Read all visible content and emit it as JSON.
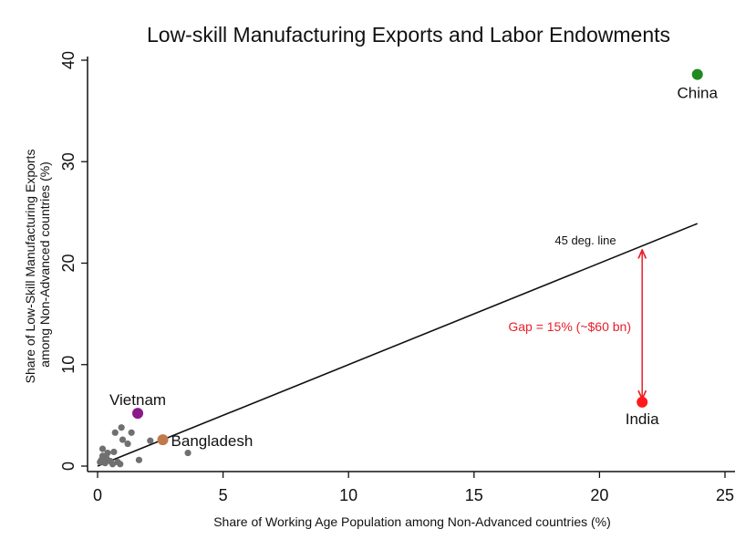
{
  "chart_data": {
    "type": "scatter",
    "title": "Low-skill Manufacturing Exports and Labor Endowments",
    "xlabel": "Share of Working Age Population among Non-Advanced countries (%)",
    "ylabel_lines": [
      "Share of Low-Skill Manufacturing Exports",
      "among Non-Advanced countries (%)"
    ],
    "xlim": [
      0,
      25
    ],
    "ylim": [
      0,
      40
    ],
    "xticks": [
      0,
      5,
      10,
      15,
      20,
      25
    ],
    "yticks": [
      0,
      10,
      20,
      30,
      40
    ],
    "grid": false,
    "background_points": [
      {
        "x": 0.1,
        "y": 0.4
      },
      {
        "x": 0.15,
        "y": 0.6
      },
      {
        "x": 0.2,
        "y": 1.0
      },
      {
        "x": 0.2,
        "y": 1.7
      },
      {
        "x": 0.3,
        "y": 0.3
      },
      {
        "x": 0.35,
        "y": 0.8
      },
      {
        "x": 0.4,
        "y": 1.3
      },
      {
        "x": 0.5,
        "y": 0.5
      },
      {
        "x": 0.6,
        "y": 0.2
      },
      {
        "x": 0.65,
        "y": 1.4
      },
      {
        "x": 0.7,
        "y": 3.3
      },
      {
        "x": 0.8,
        "y": 0.4
      },
      {
        "x": 0.9,
        "y": 0.2
      },
      {
        "x": 0.95,
        "y": 3.8
      },
      {
        "x": 1.0,
        "y": 2.6
      },
      {
        "x": 1.2,
        "y": 2.2
      },
      {
        "x": 1.35,
        "y": 3.3
      },
      {
        "x": 1.65,
        "y": 0.6
      },
      {
        "x": 2.1,
        "y": 2.5
      },
      {
        "x": 3.6,
        "y": 1.3
      }
    ],
    "highlighted_points": [
      {
        "label": "China",
        "x": 23.9,
        "y": 38.6,
        "color": "#1f8a1f"
      },
      {
        "label": "India",
        "x": 21.7,
        "y": 6.3,
        "color": "#ff1a1a"
      },
      {
        "label": "Vietnam",
        "x": 1.6,
        "y": 5.2,
        "color": "#8b1a8b"
      },
      {
        "label": "Bangladesh",
        "x": 2.6,
        "y": 2.6,
        "color": "#c07a4a"
      }
    ],
    "point_color": "#707070",
    "reference_line": {
      "label": "45 deg. line",
      "x_start": 0,
      "y_start": 0,
      "x_end": 23.9,
      "y_end": 23.9
    },
    "gap_annotation": {
      "text": "Gap = 15% (~$60 bn)",
      "x": 21.7,
      "y_from": 21.3,
      "y_to": 6.6,
      "color": "#e8202a"
    }
  }
}
